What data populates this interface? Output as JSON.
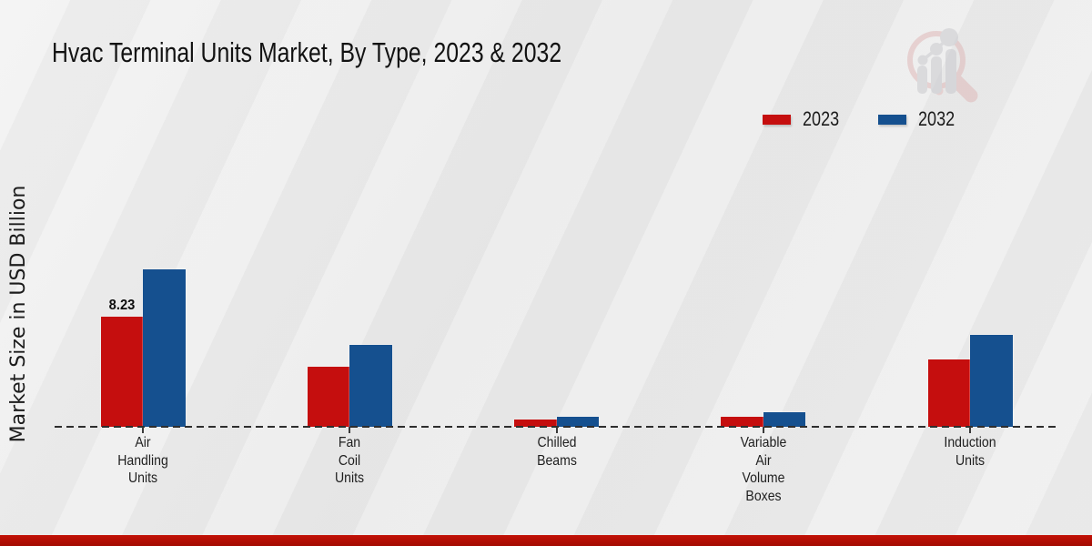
{
  "header": {
    "title": "Hvac Terminal Units Market, By Type, 2023 & 2032"
  },
  "watermark": {
    "name": "magnifier-bar-chart-logo",
    "ring_color": "#dfb9b9",
    "bar_color": "#c9c9ce"
  },
  "footer": {
    "color": "#b90d03"
  },
  "chart_data": {
    "type": "bar",
    "title": "Hvac Terminal Units Market, By Type, 2023 & 2032",
    "xlabel": "",
    "ylabel": "Market Size in USD Billion",
    "categories": [
      "Air Handling Units",
      "Fan Coil Units",
      "Chilled Beams",
      "Variable Air Volume Boxes",
      "Induction Units"
    ],
    "series": [
      {
        "name": "2023",
        "color": "#c50e0e",
        "values": [
          8.23,
          4.5,
          0.55,
          0.75,
          5.0
        ]
      },
      {
        "name": "2032",
        "color": "#15508f",
        "values": [
          11.8,
          6.1,
          0.75,
          1.1,
          6.9
        ]
      }
    ],
    "value_label": {
      "text": "8.23",
      "series_index": 0,
      "category_index": 0
    },
    "legend_position": "top-right",
    "baseline_style": "dashed",
    "grid": false,
    "ylim": [
      0,
      13
    ]
  }
}
